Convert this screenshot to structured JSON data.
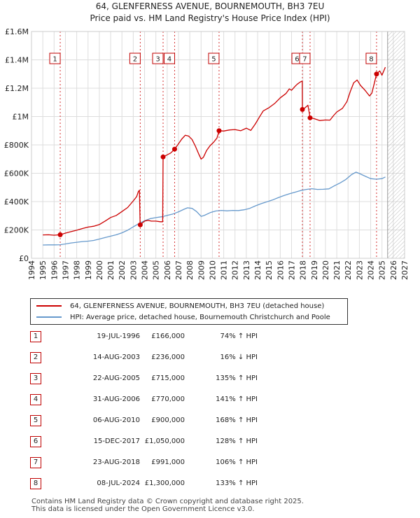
{
  "chart_data": {
    "type": "line",
    "title": "64, GLENFERNESS AVENUE, BOURNEMOUTH, BH3 7EU",
    "subtitle": "Price paid vs. HM Land Registry's House Price Index (HPI)",
    "xlim": [
      1994,
      2027
    ],
    "ylim": [
      0,
      1600000
    ],
    "x_ticks": [
      "1994",
      "1995",
      "1996",
      "1997",
      "1998",
      "1999",
      "2000",
      "2001",
      "2002",
      "2003",
      "2004",
      "2005",
      "2006",
      "2007",
      "2008",
      "2009",
      "2010",
      "2011",
      "2012",
      "2013",
      "2014",
      "2015",
      "2016",
      "2017",
      "2018",
      "2019",
      "2020",
      "2021",
      "2022",
      "2023",
      "2024",
      "2025",
      "2026",
      "2027"
    ],
    "y_ticks": [
      {
        "value": 0,
        "label": "£0"
      },
      {
        "value": 200000,
        "label": "£200K"
      },
      {
        "value": 400000,
        "label": "£400K"
      },
      {
        "value": 600000,
        "label": "£600K"
      },
      {
        "value": 800000,
        "label": "£800K"
      },
      {
        "value": 1000000,
        "label": "£1M"
      },
      {
        "value": 1200000,
        "label": "£1.2M"
      },
      {
        "value": 1400000,
        "label": "£1.4M"
      },
      {
        "value": 1600000,
        "label": "£1.6M"
      }
    ],
    "grid": true,
    "series": [
      {
        "name": "64, GLENFERNESS AVENUE, BOURNEMOUTH, BH3 7EU (detached house)",
        "color": "#cc0000",
        "points": [
          [
            1995.0,
            165000
          ],
          [
            1995.5,
            166000
          ],
          [
            1996.0,
            163000
          ],
          [
            1996.54,
            166000
          ],
          [
            1997.0,
            178000
          ],
          [
            1997.5,
            188000
          ],
          [
            1998.0,
            198000
          ],
          [
            1998.5,
            210000
          ],
          [
            1999.0,
            220000
          ],
          [
            1999.5,
            226000
          ],
          [
            2000.0,
            238000
          ],
          [
            2000.5,
            262000
          ],
          [
            2001.0,
            288000
          ],
          [
            2001.5,
            302000
          ],
          [
            2002.0,
            330000
          ],
          [
            2002.5,
            358000
          ],
          [
            2003.0,
            405000
          ],
          [
            2003.3,
            435000
          ],
          [
            2003.45,
            470000
          ],
          [
            2003.55,
            480000
          ],
          [
            2003.61,
            236000
          ],
          [
            2004.0,
            262000
          ],
          [
            2004.3,
            268000
          ],
          [
            2004.6,
            262000
          ],
          [
            2005.0,
            262000
          ],
          [
            2005.4,
            258000
          ],
          [
            2005.6,
            258000
          ],
          [
            2005.64,
            715000
          ],
          [
            2006.0,
            730000
          ],
          [
            2006.3,
            742000
          ],
          [
            2006.66,
            770000
          ],
          [
            2007.0,
            808000
          ],
          [
            2007.3,
            842000
          ],
          [
            2007.6,
            868000
          ],
          [
            2007.9,
            862000
          ],
          [
            2008.2,
            838000
          ],
          [
            2008.5,
            790000
          ],
          [
            2008.8,
            735000
          ],
          [
            2009.0,
            700000
          ],
          [
            2009.2,
            712000
          ],
          [
            2009.5,
            762000
          ],
          [
            2009.8,
            795000
          ],
          [
            2010.1,
            818000
          ],
          [
            2010.4,
            848000
          ],
          [
            2010.6,
            900000
          ],
          [
            2011.0,
            898000
          ],
          [
            2011.5,
            905000
          ],
          [
            2012.0,
            908000
          ],
          [
            2012.5,
            900000
          ],
          [
            2013.0,
            918000
          ],
          [
            2013.4,
            902000
          ],
          [
            2013.8,
            948000
          ],
          [
            2014.2,
            1002000
          ],
          [
            2014.5,
            1040000
          ],
          [
            2015.0,
            1062000
          ],
          [
            2015.5,
            1092000
          ],
          [
            2016.0,
            1132000
          ],
          [
            2016.5,
            1162000
          ],
          [
            2016.8,
            1195000
          ],
          [
            2017.0,
            1185000
          ],
          [
            2017.3,
            1212000
          ],
          [
            2017.5,
            1228000
          ],
          [
            2017.8,
            1245000
          ],
          [
            2017.95,
            1250000
          ],
          [
            2017.96,
            1050000
          ],
          [
            2018.2,
            1062000
          ],
          [
            2018.45,
            1080000
          ],
          [
            2018.64,
            991000
          ],
          [
            2019.0,
            985000
          ],
          [
            2019.5,
            972000
          ],
          [
            2020.0,
            976000
          ],
          [
            2020.4,
            975000
          ],
          [
            2020.7,
            1005000
          ],
          [
            2021.0,
            1032000
          ],
          [
            2021.5,
            1058000
          ],
          [
            2021.9,
            1105000
          ],
          [
            2022.2,
            1178000
          ],
          [
            2022.5,
            1238000
          ],
          [
            2022.8,
            1258000
          ],
          [
            2023.1,
            1220000
          ],
          [
            2023.5,
            1185000
          ],
          [
            2023.9,
            1145000
          ],
          [
            2024.1,
            1165000
          ],
          [
            2024.3,
            1228000
          ],
          [
            2024.52,
            1300000
          ],
          [
            2024.8,
            1322000
          ],
          [
            2025.0,
            1292000
          ],
          [
            2025.3,
            1348000
          ]
        ]
      },
      {
        "name": "HPI: Average price, detached house, Bournemouth Christchurch and Poole",
        "color": "#6699cc",
        "points": [
          [
            1995.0,
            94000
          ],
          [
            1995.5,
            95000
          ],
          [
            1996.0,
            95000
          ],
          [
            1996.54,
            96000
          ],
          [
            1997.0,
            101000
          ],
          [
            1997.5,
            108000
          ],
          [
            1998.0,
            113000
          ],
          [
            1998.5,
            118000
          ],
          [
            1999.0,
            121000
          ],
          [
            1999.5,
            126000
          ],
          [
            2000.0,
            136000
          ],
          [
            2000.5,
            146000
          ],
          [
            2001.0,
            156000
          ],
          [
            2001.5,
            166000
          ],
          [
            2002.0,
            180000
          ],
          [
            2002.5,
            198000
          ],
          [
            2003.0,
            222000
          ],
          [
            2003.5,
            245000
          ],
          [
            2004.0,
            265000
          ],
          [
            2004.5,
            280000
          ],
          [
            2005.0,
            287000
          ],
          [
            2005.5,
            293000
          ],
          [
            2006.0,
            302000
          ],
          [
            2006.5,
            312000
          ],
          [
            2007.0,
            328000
          ],
          [
            2007.5,
            346000
          ],
          [
            2007.8,
            356000
          ],
          [
            2008.2,
            352000
          ],
          [
            2008.6,
            330000
          ],
          [
            2009.0,
            296000
          ],
          [
            2009.3,
            303000
          ],
          [
            2009.8,
            322000
          ],
          [
            2010.3,
            334000
          ],
          [
            2010.8,
            338000
          ],
          [
            2011.3,
            335000
          ],
          [
            2011.8,
            338000
          ],
          [
            2012.3,
            337000
          ],
          [
            2012.8,
            342000
          ],
          [
            2013.3,
            352000
          ],
          [
            2013.8,
            370000
          ],
          [
            2014.3,
            385000
          ],
          [
            2014.8,
            398000
          ],
          [
            2015.3,
            411000
          ],
          [
            2015.8,
            427000
          ],
          [
            2016.3,
            442000
          ],
          [
            2016.8,
            455000
          ],
          [
            2017.3,
            466000
          ],
          [
            2017.8,
            478000
          ],
          [
            2018.3,
            486000
          ],
          [
            2018.8,
            491000
          ],
          [
            2019.3,
            486000
          ],
          [
            2019.8,
            487000
          ],
          [
            2020.3,
            490000
          ],
          [
            2020.8,
            512000
          ],
          [
            2021.3,
            532000
          ],
          [
            2021.8,
            556000
          ],
          [
            2022.3,
            590000
          ],
          [
            2022.7,
            608000
          ],
          [
            2023.0,
            598000
          ],
          [
            2023.5,
            580000
          ],
          [
            2024.0,
            562000
          ],
          [
            2024.5,
            558000
          ],
          [
            2025.0,
            562000
          ],
          [
            2025.3,
            574000
          ]
        ]
      }
    ],
    "sales": [
      {
        "num": "1",
        "x": 1996.54,
        "price": 166000
      },
      {
        "num": "2",
        "x": 2003.62,
        "price": 236000
      },
      {
        "num": "3",
        "x": 2005.64,
        "price": 715000
      },
      {
        "num": "4",
        "x": 2006.66,
        "price": 770000
      },
      {
        "num": "5",
        "x": 2010.59,
        "price": 900000
      },
      {
        "num": "6",
        "x": 2017.96,
        "price": 1050000
      },
      {
        "num": "7",
        "x": 2018.64,
        "price": 991000
      },
      {
        "num": "8",
        "x": 2024.52,
        "price": 1300000
      }
    ],
    "hatched_from": 2025.5
  },
  "legend": {
    "property_label": "64, GLENFERNESS AVENUE, BOURNEMOUTH, BH3 7EU (detached house)",
    "hpi_label": "HPI: Average price, detached house, Bournemouth Christchurch and Poole"
  },
  "transactions": [
    {
      "num": "1",
      "date": "19-JUL-1996",
      "price": "£166,000",
      "hpi": "74% ↑ HPI"
    },
    {
      "num": "2",
      "date": "14-AUG-2003",
      "price": "£236,000",
      "hpi": "16% ↓ HPI"
    },
    {
      "num": "3",
      "date": "22-AUG-2005",
      "price": "£715,000",
      "hpi": "135% ↑ HPI"
    },
    {
      "num": "4",
      "date": "31-AUG-2006",
      "price": "£770,000",
      "hpi": "141% ↑ HPI"
    },
    {
      "num": "5",
      "date": "06-AUG-2010",
      "price": "£900,000",
      "hpi": "168% ↑ HPI"
    },
    {
      "num": "6",
      "date": "15-DEC-2017",
      "price": "£1,050,000",
      "hpi": "128% ↑ HPI"
    },
    {
      "num": "7",
      "date": "23-AUG-2018",
      "price": "£991,000",
      "hpi": "106% ↑ HPI"
    },
    {
      "num": "8",
      "date": "08-JUL-2024",
      "price": "£1,300,000",
      "hpi": "133% ↑ HPI"
    }
  ],
  "footer": {
    "line1": "Contains HM Land Registry data © Crown copyright and database right 2025.",
    "line2": "This data is licensed under the Open Government Licence v3.0."
  },
  "colors": {
    "property": "#cc0000",
    "hpi": "#6699cc",
    "grid": "#dddddd",
    "plot_bg": "#ffffff"
  }
}
